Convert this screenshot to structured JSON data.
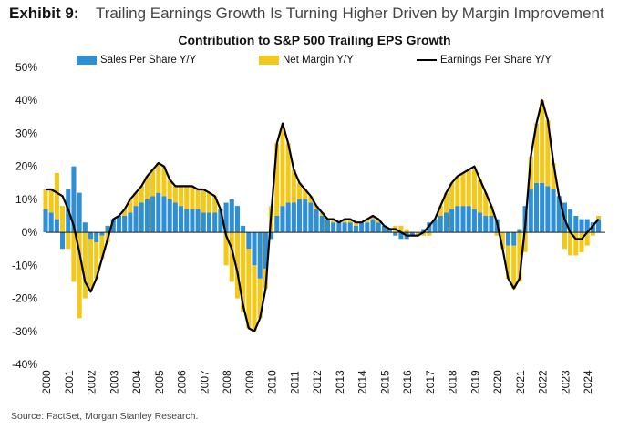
{
  "header": {
    "exhibit": "Exhibit 9:",
    "title": "Trailing Earnings Growth Is Turning Higher Driven by Margin Improvement"
  },
  "source": "Source: FactSet, Morgan Stanley Research.",
  "colors": {
    "sales": "#2E8FD4",
    "margin": "#F2C81A",
    "eps": "#000000"
  },
  "chart_data": {
    "type": "bar",
    "title": "Contribution to S&P 500 Trailing EPS Growth",
    "xlabel": "",
    "ylabel": "",
    "ylim": [
      -40,
      50
    ],
    "yticks": [
      "50%",
      "40%",
      "30%",
      "20%",
      "10%",
      "0%",
      "-10%",
      "-20%",
      "-30%",
      "-40%"
    ],
    "xticks": [
      "2000",
      "2001",
      "2002",
      "2003",
      "2004",
      "2005",
      "2006",
      "2007",
      "2008",
      "2009",
      "2010",
      "2011",
      "2012",
      "2013",
      "2014",
      "2015",
      "2016",
      "2017",
      "2018",
      "2019",
      "2020",
      "2021",
      "2022",
      "2023",
      "2024"
    ],
    "x_range": [
      2000.0,
      2024.8
    ],
    "legend": [
      {
        "name": "Sales Per Share Y/Y",
        "kind": "bar"
      },
      {
        "name": "Net Margin Y/Y",
        "kind": "bar"
      },
      {
        "name": "Earnings Per Share Y/Y",
        "kind": "line"
      }
    ],
    "series": [
      {
        "name": "Sales Per Share Y/Y",
        "kind": "bar_stacked",
        "x": [
          2000.0,
          2000.25,
          2000.5,
          2000.75,
          2001.0,
          2001.25,
          2001.5,
          2001.75,
          2002.0,
          2002.25,
          2002.5,
          2002.75,
          2003.0,
          2003.25,
          2003.5,
          2003.75,
          2004.0,
          2004.25,
          2004.5,
          2004.75,
          2005.0,
          2005.25,
          2005.5,
          2005.75,
          2006.0,
          2006.25,
          2006.5,
          2006.75,
          2007.0,
          2007.25,
          2007.5,
          2007.75,
          2008.0,
          2008.25,
          2008.5,
          2008.75,
          2009.0,
          2009.25,
          2009.5,
          2009.75,
          2010.0,
          2010.25,
          2010.5,
          2010.75,
          2011.0,
          2011.25,
          2011.5,
          2011.75,
          2012.0,
          2012.25,
          2012.5,
          2012.75,
          2013.0,
          2013.25,
          2013.5,
          2013.75,
          2014.0,
          2014.25,
          2014.5,
          2014.75,
          2015.0,
          2015.25,
          2015.5,
          2015.75,
          2016.0,
          2016.25,
          2016.5,
          2016.75,
          2017.0,
          2017.25,
          2017.5,
          2017.75,
          2018.0,
          2018.25,
          2018.5,
          2018.75,
          2019.0,
          2019.25,
          2019.5,
          2019.75,
          2020.0,
          2020.25,
          2020.5,
          2020.75,
          2021.0,
          2021.25,
          2021.5,
          2021.75,
          2022.0,
          2022.25,
          2022.5,
          2022.75,
          2023.0,
          2023.25,
          2023.5,
          2023.75,
          2024.0,
          2024.25,
          2024.5
        ],
        "values": [
          7,
          6,
          4,
          -5,
          13,
          20,
          12,
          3,
          -2,
          -3,
          -1,
          2,
          4,
          5,
          5,
          6,
          8,
          9,
          10,
          11,
          12,
          11,
          10,
          9,
          8,
          7,
          7,
          7,
          6,
          6,
          6,
          7,
          9,
          10,
          8,
          2,
          -5,
          -10,
          -14,
          -11,
          -2,
          5,
          8,
          9,
          9,
          10,
          10,
          9,
          7,
          5,
          4,
          3,
          3,
          3,
          3,
          2,
          3,
          3,
          4,
          3,
          2,
          1,
          -1,
          -2,
          -2,
          -1,
          0,
          1,
          3,
          4,
          5,
          6,
          7,
          8,
          8,
          8,
          7,
          6,
          5,
          5,
          4,
          0,
          -4,
          -4,
          1,
          8,
          13,
          15,
          15,
          14,
          13,
          11,
          9,
          7,
          5,
          4,
          4,
          3,
          4
        ]
      },
      {
        "name": "Net Margin Y/Y",
        "kind": "bar_stacked",
        "x": [
          2000.0,
          2000.25,
          2000.5,
          2000.75,
          2001.0,
          2001.25,
          2001.5,
          2001.75,
          2002.0,
          2002.25,
          2002.5,
          2002.75,
          2003.0,
          2003.25,
          2003.5,
          2003.75,
          2004.0,
          2004.25,
          2004.5,
          2004.75,
          2005.0,
          2005.25,
          2005.5,
          2005.75,
          2006.0,
          2006.25,
          2006.5,
          2006.75,
          2007.0,
          2007.25,
          2007.5,
          2007.75,
          2008.0,
          2008.25,
          2008.5,
          2008.75,
          2009.0,
          2009.25,
          2009.5,
          2009.75,
          2010.0,
          2010.25,
          2010.5,
          2010.75,
          2011.0,
          2011.25,
          2011.5,
          2011.75,
          2012.0,
          2012.25,
          2012.5,
          2012.75,
          2013.0,
          2013.25,
          2013.5,
          2013.75,
          2014.0,
          2014.25,
          2014.5,
          2014.75,
          2015.0,
          2015.25,
          2015.5,
          2015.75,
          2016.0,
          2016.25,
          2016.5,
          2016.75,
          2017.0,
          2017.25,
          2017.5,
          2017.75,
          2018.0,
          2018.25,
          2018.5,
          2018.75,
          2019.0,
          2019.25,
          2019.5,
          2019.75,
          2020.0,
          2020.25,
          2020.5,
          2020.75,
          2021.0,
          2021.25,
          2021.5,
          2021.75,
          2022.0,
          2022.25,
          2022.5,
          2022.75,
          2023.0,
          2023.25,
          2023.5,
          2023.75,
          2024.0,
          2024.25,
          2024.5
        ],
        "values": [
          6,
          7,
          14,
          8,
          -5,
          -15,
          -26,
          -20,
          -15,
          -11,
          -7,
          -3,
          0,
          0,
          2,
          4,
          4,
          5,
          7,
          8,
          9,
          9,
          6,
          5,
          6,
          7,
          7,
          6,
          7,
          6,
          5,
          0,
          -10,
          -15,
          -20,
          -24,
          -24,
          -20,
          -12,
          -6,
          8,
          22,
          24,
          18,
          10,
          5,
          3,
          2,
          1,
          1,
          0,
          1,
          0,
          1,
          1,
          1,
          0,
          1,
          1,
          1,
          0,
          0,
          2,
          2,
          1,
          0,
          -1,
          -1,
          -1,
          0,
          3,
          6,
          8,
          9,
          10,
          11,
          12,
          10,
          7,
          3,
          -1,
          -5,
          -10,
          -13,
          -15,
          -6,
          10,
          18,
          25,
          20,
          8,
          0,
          -5,
          -7,
          -7,
          -6,
          -4,
          -1,
          1
        ]
      },
      {
        "name": "Earnings Per Share Y/Y",
        "kind": "line",
        "x": [
          2000.0,
          2000.25,
          2000.5,
          2000.75,
          2001.0,
          2001.25,
          2001.5,
          2001.75,
          2002.0,
          2002.25,
          2002.5,
          2002.75,
          2003.0,
          2003.25,
          2003.5,
          2003.75,
          2004.0,
          2004.25,
          2004.5,
          2004.75,
          2005.0,
          2005.25,
          2005.5,
          2005.75,
          2006.0,
          2006.25,
          2006.5,
          2006.75,
          2007.0,
          2007.25,
          2007.5,
          2007.75,
          2008.0,
          2008.25,
          2008.5,
          2008.75,
          2009.0,
          2009.25,
          2009.5,
          2009.75,
          2010.0,
          2010.25,
          2010.5,
          2010.75,
          2011.0,
          2011.25,
          2011.5,
          2011.75,
          2012.0,
          2012.25,
          2012.5,
          2012.75,
          2013.0,
          2013.25,
          2013.5,
          2013.75,
          2014.0,
          2014.25,
          2014.5,
          2014.75,
          2015.0,
          2015.25,
          2015.5,
          2015.75,
          2016.0,
          2016.25,
          2016.5,
          2016.75,
          2017.0,
          2017.25,
          2017.5,
          2017.75,
          2018.0,
          2018.25,
          2018.5,
          2018.75,
          2019.0,
          2019.25,
          2019.5,
          2019.75,
          2020.0,
          2020.25,
          2020.5,
          2020.75,
          2021.0,
          2021.25,
          2021.5,
          2021.75,
          2022.0,
          2022.25,
          2022.5,
          2022.75,
          2023.0,
          2023.25,
          2023.5,
          2023.75,
          2024.0,
          2024.25,
          2024.5
        ],
        "values": [
          13,
          13,
          12,
          11,
          7,
          2,
          -6,
          -15,
          -18,
          -14,
          -8,
          -2,
          4,
          5,
          7,
          10,
          12,
          14,
          17,
          19,
          21,
          20,
          16,
          14,
          14,
          14,
          14,
          13,
          13,
          12,
          11,
          7,
          -1,
          -5,
          -12,
          -22,
          -29,
          -30,
          -26,
          -17,
          6,
          27,
          33,
          27,
          19,
          15,
          13,
          11,
          8,
          6,
          4,
          4,
          3,
          4,
          4,
          3,
          3,
          4,
          5,
          4,
          2,
          1,
          1,
          0,
          -1,
          -1,
          -1,
          0,
          2,
          4,
          8,
          12,
          15,
          17,
          18,
          19,
          20,
          16,
          12,
          8,
          3,
          -5,
          -14,
          -17,
          -14,
          2,
          23,
          33,
          40,
          34,
          21,
          11,
          4,
          0,
          -2,
          -2,
          0,
          2,
          4
        ]
      }
    ]
  }
}
